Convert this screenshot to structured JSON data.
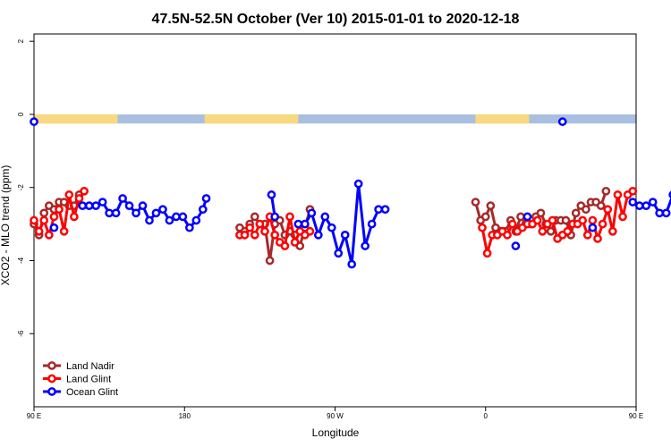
{
  "chart_data": {
    "type": "line",
    "title": "47.5N-52.5N October (Ver 10)   2015-01-01 to 2020-12-18",
    "xlabel": "Longitude",
    "ylabel": "XCO2 - MLO trend (ppm)",
    "xlim": [
      -90,
      270
    ],
    "ylim": [
      -8,
      2.2
    ],
    "x_ticks": [
      {
        "value": -90,
        "label": "90 E"
      },
      {
        "value": 0,
        "label": "180"
      },
      {
        "value": 90,
        "label": "90 W"
      },
      {
        "value": 180,
        "label": "0"
      },
      {
        "value": 270,
        "label": "90 E"
      },
      {
        "value": 360,
        "label": "180"
      }
    ],
    "y_ticks": [
      {
        "value": 2,
        "label": "2"
      },
      {
        "value": 0,
        "label": "0"
      },
      {
        "value": -2,
        "label": "-2"
      },
      {
        "value": -4,
        "label": "-4"
      },
      {
        "value": -6,
        "label": "-6"
      }
    ],
    "legend_position": "bottom-left",
    "land_ocean_strip": {
      "y_range": [
        -0.25,
        0.0
      ],
      "land_color": "#f8d980",
      "ocean_color": "#a9bfe0",
      "land_segments": [
        [
          -90,
          -40
        ],
        [
          12,
          68
        ],
        [
          174,
          206
        ]
      ]
    },
    "series": [
      {
        "name": "Land Nadir",
        "color": "#a52a2a",
        "segments": [
          [
            [
              -90,
              -3.0
            ],
            [
              -87,
              -3.3
            ],
            [
              -84,
              -2.7
            ],
            [
              -81,
              -2.5
            ],
            [
              -78,
              -2.6
            ],
            [
              -75,
              -2.4
            ],
            [
              -72,
              -2.4
            ],
            [
              -69,
              -2.5
            ],
            [
              -66,
              -2.5
            ],
            [
              -63,
              -2.2
            ]
          ],
          [
            [
              33,
              -3.1
            ],
            [
              36,
              -3.2
            ],
            [
              39,
              -3.0
            ],
            [
              42,
              -2.8
            ],
            [
              45,
              -3.0
            ],
            [
              48,
              -3.0
            ],
            [
              51,
              -4.0
            ],
            [
              54,
              -3.0
            ],
            [
              57,
              -2.9
            ],
            [
              60,
              -3.3
            ],
            [
              63,
              -3.2
            ],
            [
              66,
              -3.3
            ],
            [
              69,
              -3.6
            ],
            [
              72,
              -3.1
            ],
            [
              75,
              -2.6
            ]
          ],
          [
            [
              174,
              -2.4
            ],
            [
              177,
              -2.9
            ],
            [
              180,
              -2.8
            ],
            [
              183,
              -2.5
            ],
            [
              186,
              -3.1
            ],
            [
              189,
              -3.2
            ],
            [
              192,
              -3.2
            ],
            [
              195,
              -2.9
            ],
            [
              198,
              -3.2
            ],
            [
              201,
              -2.8
            ],
            [
              204,
              -3.0
            ],
            [
              207,
              -3.0
            ],
            [
              210,
              -2.8
            ],
            [
              213,
              -2.7
            ],
            [
              216,
              -3.0
            ],
            [
              219,
              -3.2
            ],
            [
              222,
              -2.9
            ],
            [
              225,
              -2.9
            ],
            [
              228,
              -2.9
            ],
            [
              231,
              -3.3
            ],
            [
              234,
              -2.7
            ],
            [
              237,
              -2.5
            ],
            [
              240,
              -2.6
            ],
            [
              243,
              -2.4
            ],
            [
              246,
              -2.4
            ],
            [
              249,
              -2.5
            ],
            [
              252,
              -2.1
            ]
          ]
        ]
      },
      {
        "name": "Land Glint",
        "color": "#ff0000",
        "segments": [
          [
            [
              -90,
              -2.9
            ],
            [
              -87,
              -3.2
            ],
            [
              -84,
              -2.9
            ],
            [
              -81,
              -3.3
            ],
            [
              -78,
              -2.8
            ],
            [
              -75,
              -2.6
            ],
            [
              -72,
              -3.2
            ],
            [
              -69,
              -2.2
            ],
            [
              -66,
              -2.8
            ],
            [
              -63,
              -2.3
            ],
            [
              -60,
              -2.1
            ]
          ],
          [
            [
              33,
              -3.3
            ],
            [
              36,
              -3.3
            ],
            [
              39,
              -3.1
            ],
            [
              42,
              -3.3
            ],
            [
              45,
              -3.0
            ],
            [
              48,
              -3.2
            ],
            [
              51,
              -2.8
            ],
            [
              54,
              -3.3
            ],
            [
              57,
              -3.5
            ],
            [
              60,
              -3.6
            ],
            [
              63,
              -2.8
            ],
            [
              66,
              -3.5
            ],
            [
              69,
              -3.2
            ],
            [
              72,
              -3.3
            ],
            [
              75,
              -3.2
            ]
          ],
          [
            [
              178,
              -3.1
            ],
            [
              181,
              -3.8
            ],
            [
              184,
              -3.3
            ],
            [
              187,
              -3.3
            ],
            [
              190,
              -3.2
            ],
            [
              193,
              -3.3
            ],
            [
              196,
              -3.0
            ],
            [
              199,
              -3.2
            ],
            [
              202,
              -3.1
            ],
            [
              205,
              -3.0
            ],
            [
              208,
              -3.0
            ],
            [
              211,
              -2.9
            ],
            [
              214,
              -3.2
            ],
            [
              217,
              -3.0
            ],
            [
              220,
              -2.9
            ],
            [
              223,
              -3.4
            ],
            [
              226,
              -3.3
            ],
            [
              229,
              -3.2
            ],
            [
              232,
              -3.0
            ],
            [
              235,
              -3.0
            ],
            [
              238,
              -2.9
            ],
            [
              241,
              -3.3
            ],
            [
              244,
              -2.9
            ],
            [
              247,
              -3.4
            ],
            [
              250,
              -3.0
            ],
            [
              253,
              -2.6
            ],
            [
              256,
              -3.2
            ],
            [
              259,
              -2.2
            ],
            [
              262,
              -2.8
            ],
            [
              265,
              -2.2
            ],
            [
              268,
              -2.1
            ]
          ]
        ]
      },
      {
        "name": "Ocean Glint",
        "color": "#0000ff",
        "segments": [
          [
            [
              -90,
              -0.2
            ]
          ],
          [
            [
              -78,
              -3.1
            ]
          ],
          [
            [
              -61,
              -2.5
            ],
            [
              -57,
              -2.5
            ],
            [
              -53,
              -2.5
            ],
            [
              -49,
              -2.4
            ],
            [
              -45,
              -2.7
            ],
            [
              -41,
              -2.7
            ],
            [
              -37,
              -2.3
            ],
            [
              -33,
              -2.5
            ],
            [
              -29,
              -2.7
            ],
            [
              -25,
              -2.5
            ],
            [
              -21,
              -2.9
            ],
            [
              -17,
              -2.7
            ],
            [
              -13,
              -2.6
            ],
            [
              -9,
              -2.9
            ],
            [
              -5,
              -2.8
            ],
            [
              -1,
              -2.8
            ],
            [
              3,
              -3.1
            ],
            [
              7,
              -2.9
            ],
            [
              11,
              -2.6
            ],
            [
              13,
              -2.3
            ]
          ],
          [
            [
              52,
              -2.2
            ],
            [
              54,
              -2.8
            ]
          ],
          [
            [
              68,
              -3.0
            ],
            [
              72,
              -3.0
            ],
            [
              76,
              -2.7
            ],
            [
              80,
              -3.3
            ],
            [
              84,
              -2.8
            ],
            [
              88,
              -3.1
            ],
            [
              92,
              -3.8
            ],
            [
              96,
              -3.3
            ],
            [
              100,
              -4.1
            ],
            [
              104,
              -1.9
            ],
            [
              108,
              -3.6
            ],
            [
              112,
              -3.0
            ],
            [
              116,
              -2.6
            ],
            [
              120,
              -2.6
            ]
          ],
          [
            [
              198,
              -3.6
            ]
          ],
          [
            [
              205,
              -2.8
            ]
          ],
          [
            [
              226,
              -0.2
            ]
          ],
          [
            [
              244,
              -3.1
            ]
          ],
          [
            [
              268,
              -2.4
            ],
            [
              272,
              -2.5
            ],
            [
              276,
              -2.5
            ],
            [
              280,
              -2.4
            ],
            [
              284,
              -2.7
            ],
            [
              288,
              -2.7
            ],
            [
              292,
              -2.2
            ],
            [
              296,
              -2.5
            ]
          ]
        ]
      }
    ]
  }
}
